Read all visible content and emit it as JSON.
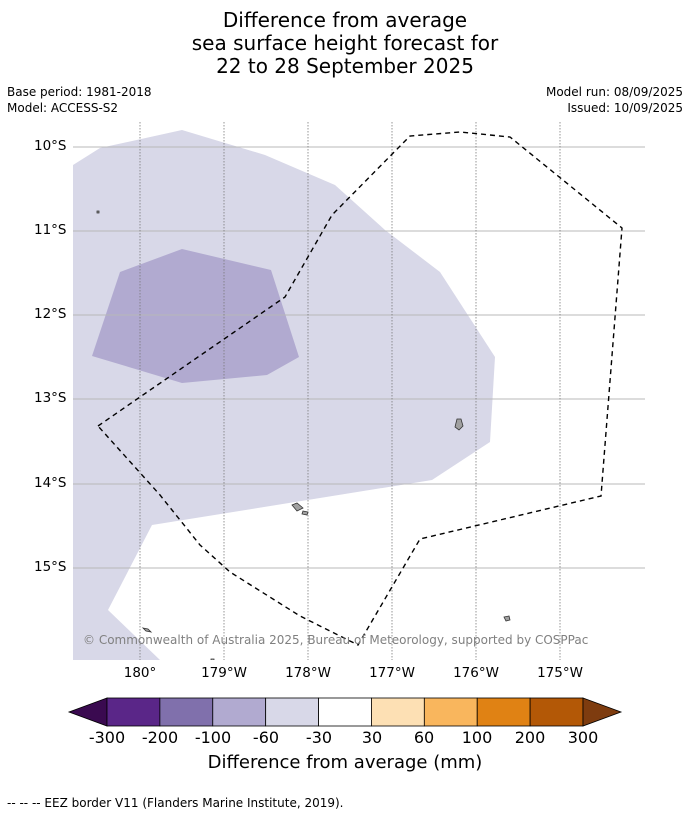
{
  "title": {
    "line1": "Difference from average",
    "line2": "sea surface height forecast for",
    "line3": "22 to 28 September 2025"
  },
  "meta": {
    "base_period": "Base period: 1981-2018",
    "model": "Model: ACCESS-S2",
    "model_run": "Model run: 08/09/2025",
    "issued": "Issued: 10/09/2025"
  },
  "map": {
    "lat_labels": [
      "10°S",
      "11°S",
      "12°S",
      "13°S",
      "14°S",
      "15°S"
    ],
    "lon_labels": [
      "180°",
      "179°W",
      "178°W",
      "177°W",
      "176°W",
      "175°W"
    ],
    "copyright": "© Commonwealth of Australia 2025, Bureau of Meteorology, supported by COSPPac",
    "land_color": "#a0a0a0",
    "shading": [
      {
        "bin": "-60 to -30",
        "color": "#d8d8e8"
      },
      {
        "bin": "-100 to -60",
        "color": "#b1aad0"
      }
    ]
  },
  "colorbar": {
    "title": "Difference from average (mm)",
    "ticks": [
      "-300",
      "-200",
      "-100",
      "-60",
      "-30",
      "30",
      "60",
      "100",
      "200",
      "300"
    ],
    "under_color": "#3a0a50",
    "over_color": "#7e3c0f",
    "colors": [
      "#5a2688",
      "#8070ac",
      "#b1aad0",
      "#d8d8e8",
      "#ffffff",
      "#fde0b4",
      "#f9b65d",
      "#e08214",
      "#b35806"
    ]
  },
  "legend": {
    "eez_label": "--  --  -- EEZ border V11 (Flanders Marine Institute, 2019)."
  }
}
